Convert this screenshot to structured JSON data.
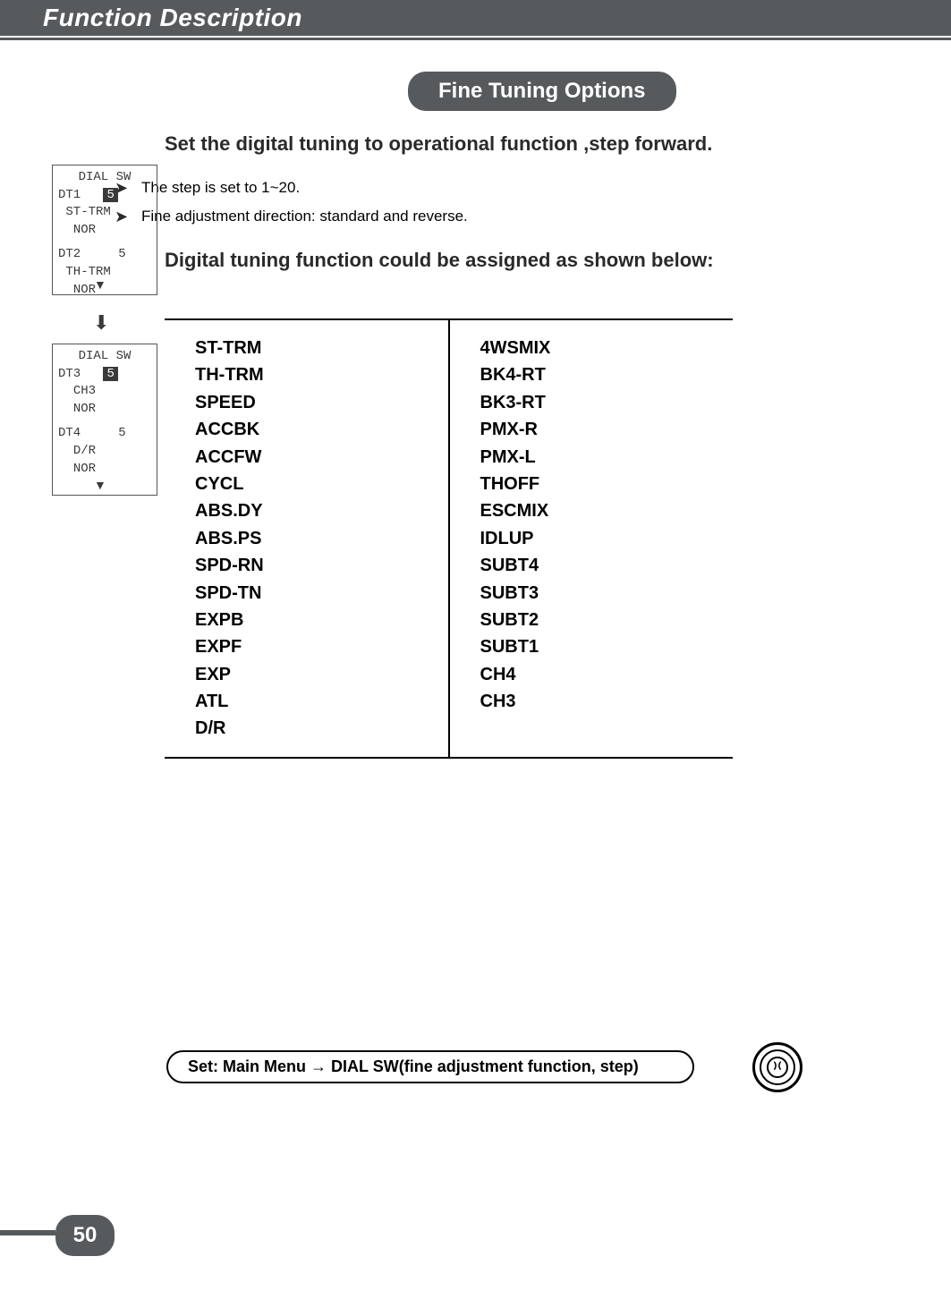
{
  "header": "Function Description",
  "pill": "Fine Tuning Options",
  "intro": "Set the digital tuning to operational function ,step forward.",
  "note1": "The step is set to 1~20.",
  "note2": "Fine adjustment direction: standard and reverse.",
  "sub": "Digital tuning function could be assigned as shown below:",
  "lcd1": {
    "title": "DIAL SW",
    "l1a": "DT1",
    "l1b": "5",
    "l2": "ST-TRM",
    "l3": "NOR",
    "l4a": "DT2",
    "l4b": "5",
    "l5": "TH-TRM",
    "l6": "NOR"
  },
  "lcd2": {
    "title": "DIAL SW",
    "l1a": "DT3",
    "l1b": "5",
    "l2": "CH3",
    "l3": "NOR",
    "l4a": "DT4",
    "l4b": "5",
    "l5": "D/R",
    "l6": "NOR"
  },
  "functions": {
    "left": [
      "ST-TRM",
      "TH-TRM",
      "SPEED",
      "ACCBK",
      "ACCFW",
      "CYCL",
      "ABS.DY",
      "ABS.PS",
      "SPD-RN",
      "SPD-TN",
      "EXPB",
      "EXPF",
      "EXP",
      "ATL",
      "D/R"
    ],
    "right": [
      "4WSMIX",
      "BK4-RT",
      "BK3-RT",
      "PMX-R",
      "PMX-L",
      "THOFF",
      "ESCMIX",
      "IDLUP",
      "SUBT4",
      "SUBT3",
      "SUBT2",
      "SUBT1",
      "CH4",
      "CH3"
    ]
  },
  "footer": {
    "pre": "Set: Main Menu",
    "arrow": "→",
    "post": "DIAL SW(fine adjustment function, step)"
  },
  "page": "50",
  "colors": {
    "header_bg": "#565a5d",
    "text": "#2a2a2a"
  }
}
